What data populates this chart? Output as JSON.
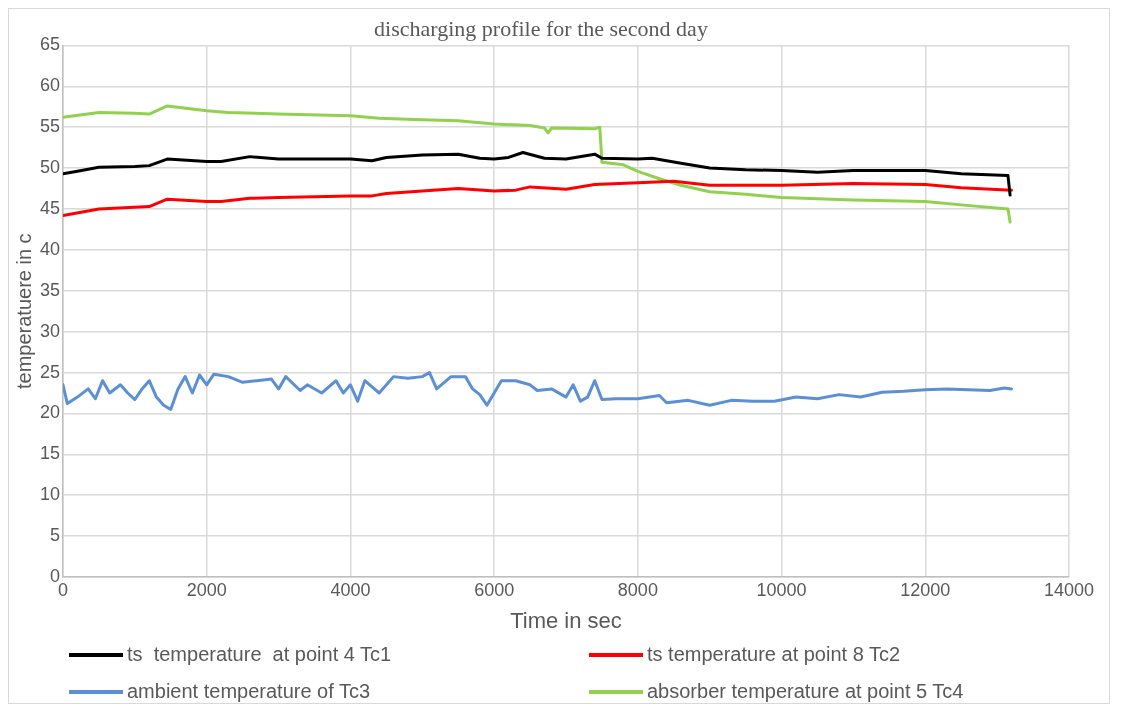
{
  "chart_data": {
    "type": "line",
    "title": "discharging profile for the second day",
    "xlabel": "Time in sec",
    "ylabel": "temperatuere in c",
    "xlim": [
      0,
      14000
    ],
    "xticks": [
      0,
      2000,
      4000,
      6000,
      8000,
      10000,
      12000,
      14000
    ],
    "ylim": [
      0,
      65
    ],
    "yticks": [
      0,
      5,
      10,
      15,
      20,
      25,
      30,
      35,
      40,
      45,
      50,
      55,
      60,
      65
    ],
    "grid": true,
    "legend": "bottom",
    "marker": "none",
    "line_style": "solid",
    "series": [
      {
        "name": "ts  temperature  at point 4 Tc1",
        "color": "#000000",
        "x": [
          0,
          200,
          500,
          1000,
          1200,
          1450,
          2000,
          2200,
          2600,
          3000,
          3500,
          4000,
          4300,
          4500,
          5000,
          5500,
          5800,
          6000,
          6200,
          6400,
          6700,
          7000,
          7400,
          7500,
          8000,
          8200,
          8600,
          9000,
          9500,
          10000,
          10500,
          11000,
          12000,
          12500,
          13150,
          13180
        ],
        "values": [
          49.3,
          49.6,
          50.1,
          50.2,
          50.3,
          51.1,
          50.8,
          50.8,
          51.4,
          51.1,
          51.1,
          51.1,
          50.9,
          51.3,
          51.6,
          51.7,
          51.2,
          51.1,
          51.3,
          51.9,
          51.2,
          51.1,
          51.7,
          51.2,
          51.1,
          51.2,
          50.6,
          50.0,
          49.8,
          49.7,
          49.5,
          49.7,
          49.7,
          49.3,
          49.1,
          46.7
        ]
      },
      {
        "name": "ts temperature at point 8 Tc2",
        "color": "#ff0000",
        "x": [
          0,
          500,
          1200,
          1450,
          2000,
          2200,
          2600,
          3000,
          4000,
          4300,
          4500,
          5000,
          5500,
          6000,
          6300,
          6500,
          7000,
          7400,
          8000,
          8500,
          9000,
          10000,
          11000,
          12000,
          12500,
          13200
        ],
        "values": [
          44.2,
          45.0,
          45.3,
          46.2,
          45.9,
          45.9,
          46.3,
          46.4,
          46.6,
          46.6,
          46.9,
          47.2,
          47.5,
          47.2,
          47.3,
          47.7,
          47.4,
          48.0,
          48.2,
          48.4,
          47.9,
          47.9,
          48.1,
          48.0,
          47.6,
          47.3
        ]
      },
      {
        "name": "ambient temperature of Tc3",
        "color": "#5b8fd6",
        "x": [
          0,
          60,
          200,
          350,
          450,
          550,
          650,
          800,
          900,
          1000,
          1100,
          1200,
          1300,
          1400,
          1500,
          1600,
          1700,
          1800,
          1900,
          2000,
          2100,
          2300,
          2500,
          2700,
          2900,
          3000,
          3100,
          3300,
          3400,
          3600,
          3800,
          3900,
          4000,
          4100,
          4200,
          4400,
          4600,
          4800,
          5000,
          5100,
          5200,
          5400,
          5600,
          5700,
          5800,
          5900,
          6000,
          6100,
          6300,
          6500,
          6600,
          6800,
          7000,
          7100,
          7200,
          7300,
          7400,
          7500,
          7700,
          8000,
          8300,
          8400,
          8700,
          9000,
          9300,
          9600,
          9900,
          10200,
          10500,
          10800,
          11100,
          11400,
          11700,
          12000,
          12300,
          12600,
          12900,
          13100,
          13200
        ],
        "values": [
          23.5,
          21.2,
          22.0,
          23.0,
          21.8,
          24.0,
          22.5,
          23.5,
          22.5,
          21.7,
          23.0,
          24.0,
          22.0,
          21.0,
          20.5,
          23.0,
          24.5,
          22.5,
          24.7,
          23.5,
          24.8,
          24.5,
          23.8,
          24.0,
          24.2,
          23.0,
          24.5,
          22.8,
          23.5,
          22.5,
          24.0,
          22.5,
          23.5,
          21.5,
          24.0,
          22.5,
          24.5,
          24.3,
          24.5,
          25.0,
          23.0,
          24.5,
          24.5,
          23.0,
          22.3,
          21.0,
          22.5,
          24.0,
          24.0,
          23.5,
          22.8,
          23.0,
          22.0,
          23.5,
          21.5,
          22.0,
          24.0,
          21.7,
          21.8,
          21.8,
          22.2,
          21.3,
          21.6,
          21.0,
          21.6,
          21.5,
          21.5,
          22.0,
          21.8,
          22.3,
          22.0,
          22.6,
          22.7,
          22.9,
          23.0,
          22.9,
          22.8,
          23.1,
          23.0
        ]
      },
      {
        "name": "absorber temperature at point 5 Tc4",
        "color": "#92d050",
        "x": [
          0,
          500,
          1000,
          1200,
          1450,
          2000,
          2300,
          3000,
          4000,
          4400,
          5000,
          5500,
          6000,
          6500,
          6700,
          6750,
          6800,
          7400,
          7470,
          7500,
          7800,
          8000,
          8300,
          8600,
          9000,
          9500,
          10000,
          11000,
          12000,
          12500,
          13150,
          13180
        ],
        "values": [
          56.2,
          56.8,
          56.7,
          56.6,
          57.6,
          57.0,
          56.8,
          56.6,
          56.4,
          56.1,
          55.9,
          55.8,
          55.4,
          55.2,
          54.9,
          54.3,
          54.9,
          54.8,
          55.0,
          50.7,
          50.4,
          49.6,
          48.7,
          47.9,
          47.1,
          46.8,
          46.4,
          46.1,
          45.9,
          45.5,
          45.0,
          43.4
        ]
      }
    ]
  }
}
